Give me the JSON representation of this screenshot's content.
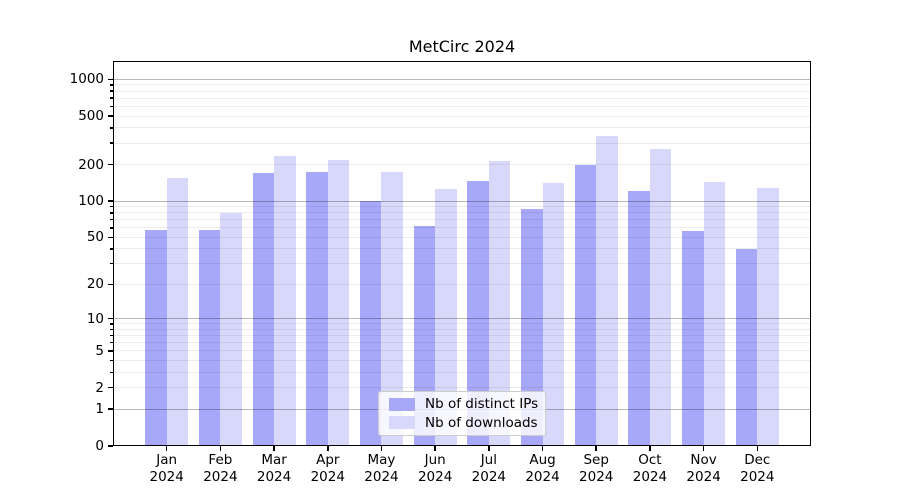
{
  "chart_data": {
    "type": "bar",
    "title": "MetCirc 2024",
    "categories": [
      "Jan\n2024",
      "Feb\n2024",
      "Mar\n2024",
      "Apr\n2024",
      "May\n2024",
      "Jun\n2024",
      "Jul\n2024",
      "Aug\n2024",
      "Sep\n2024",
      "Oct\n2024",
      "Nov\n2024",
      "Dec\n2024"
    ],
    "series": [
      {
        "name": "Nb of distinct IPs",
        "color": "#a8a8fa",
        "values": [
          58,
          58,
          170,
          174,
          100,
          62,
          147,
          86,
          197,
          122,
          56,
          40
        ]
      },
      {
        "name": "Nb of downloads",
        "color": "#d8d8fb",
        "values": [
          154,
          79,
          233,
          219,
          173,
          125,
          213,
          142,
          340,
          270,
          144,
          127
        ]
      }
    ],
    "xlabel": "",
    "ylabel": "",
    "y_scale": "log1p",
    "ylim": [
      0,
      1412
    ],
    "y_ticks": [
      0,
      1,
      2,
      5,
      10,
      20,
      50,
      100,
      200,
      500,
      1000
    ],
    "grid": {
      "on": true,
      "major_lines": [
        1,
        10,
        100,
        1000
      ],
      "minor_decades": [
        1,
        10,
        100
      ]
    },
    "legend": {
      "position": "lower center"
    }
  },
  "colors": {
    "background": "#ffffff",
    "spine": "#000000",
    "bar_dark": "#a8a8fa",
    "bar_light": "#d8d8fb"
  }
}
